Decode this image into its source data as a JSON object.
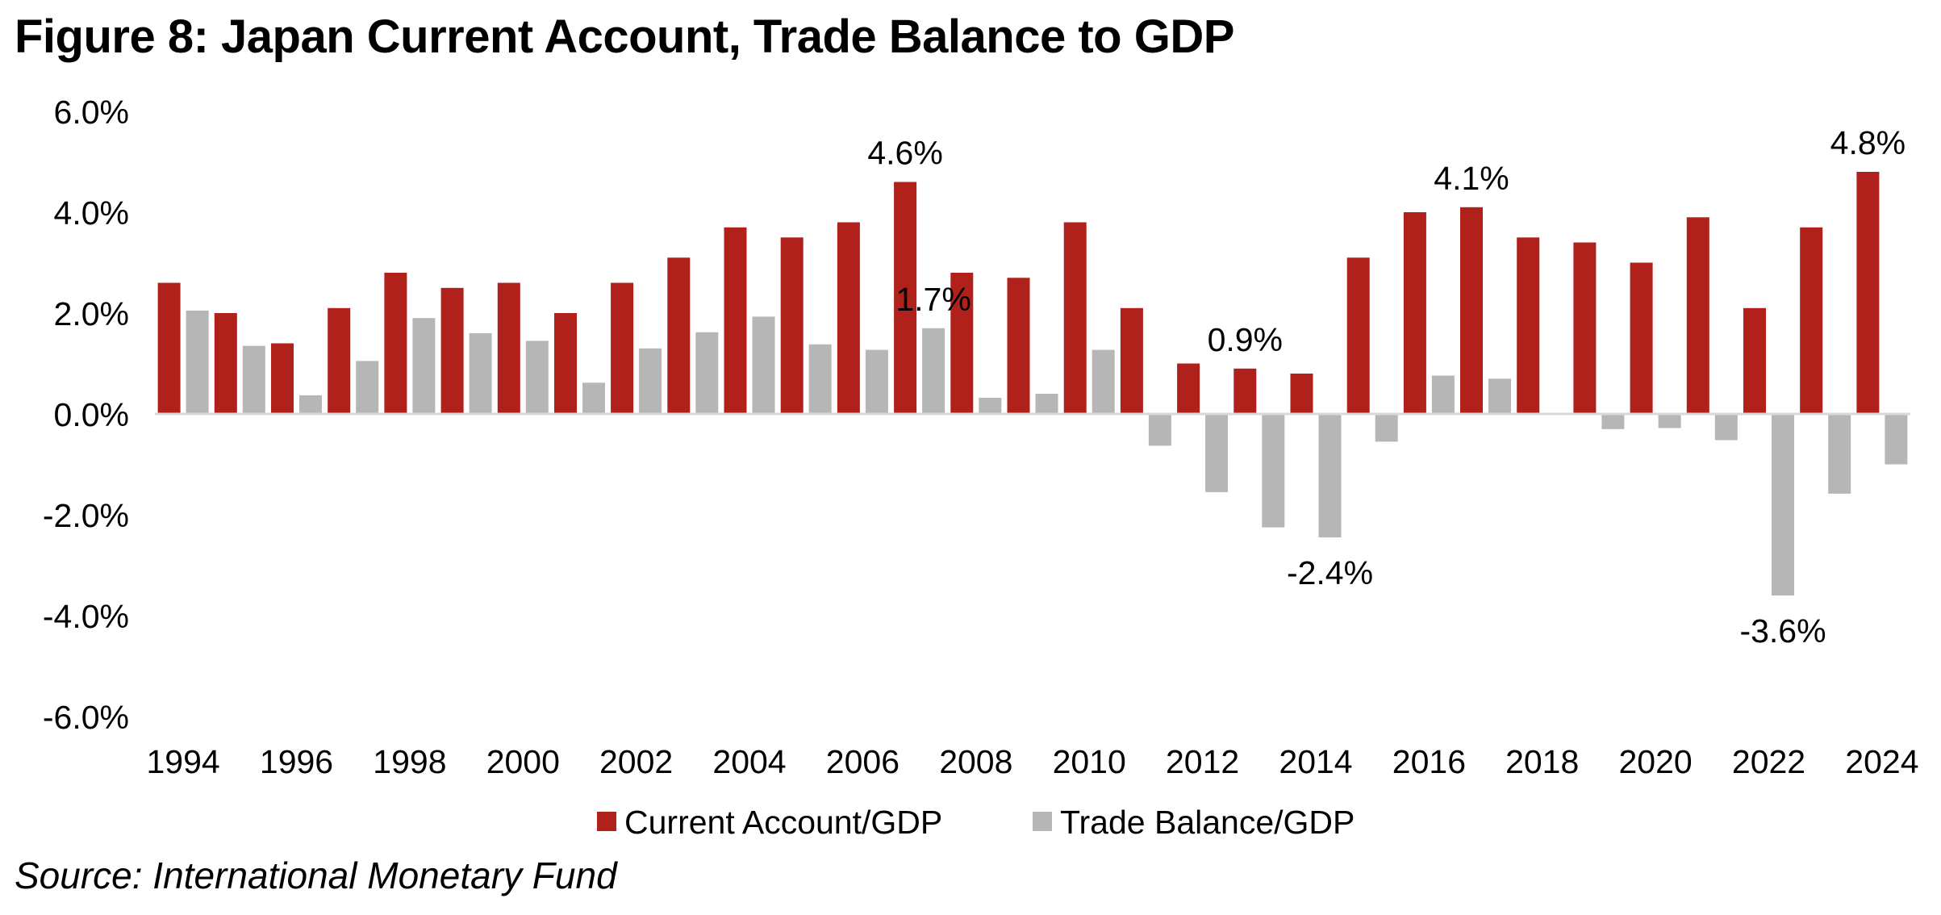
{
  "title": "Figure 8: Japan Current Account, Trade Balance to GDP",
  "source": "Source: International Monetary Fund",
  "chart_data": {
    "type": "bar",
    "categories": [
      "1994",
      "1995",
      "1996",
      "1997",
      "1998",
      "1999",
      "2000",
      "2001",
      "2002",
      "2003",
      "2004",
      "2005",
      "2006",
      "2007",
      "2008",
      "2009",
      "2010",
      "2011",
      "2012",
      "2013",
      "2014",
      "2015",
      "2016",
      "2017",
      "2018",
      "2019",
      "2020",
      "2021",
      "2022",
      "2023",
      "2024"
    ],
    "x_tick_labels": [
      "1994",
      "1996",
      "1998",
      "2000",
      "2002",
      "2004",
      "2006",
      "2008",
      "2010",
      "2012",
      "2014",
      "2016",
      "2018",
      "2020",
      "2022",
      "2024"
    ],
    "series": [
      {
        "name": "Current Account/GDP",
        "color": "#b1211c",
        "values": [
          2.6,
          2.0,
          1.4,
          2.1,
          2.8,
          2.5,
          2.6,
          2.0,
          2.6,
          3.1,
          3.7,
          3.5,
          3.8,
          4.6,
          2.8,
          2.7,
          3.8,
          2.1,
          1.0,
          0.9,
          0.8,
          3.1,
          4.0,
          4.1,
          3.5,
          3.4,
          3.0,
          3.9,
          2.1,
          3.7,
          4.8
        ]
      },
      {
        "name": "Trade Balance/GDP",
        "color": "#b6b6b6",
        "values": [
          2.05,
          1.35,
          0.37,
          1.05,
          1.9,
          1.6,
          1.45,
          0.62,
          1.3,
          1.62,
          1.93,
          1.38,
          1.27,
          1.7,
          0.32,
          0.4,
          1.27,
          -0.63,
          -1.55,
          -2.25,
          -2.45,
          -0.55,
          0.76,
          0.7,
          0.02,
          -0.3,
          -0.28,
          -0.52,
          -3.6,
          -1.58,
          -1.0
        ]
      }
    ],
    "annotations": [
      {
        "label": "4.6%",
        "category": "2007",
        "series": 0
      },
      {
        "label": "1.7%",
        "category": "2007",
        "series": 1
      },
      {
        "label": "0.9%",
        "category": "2013",
        "series": 0
      },
      {
        "label": "-2.4%",
        "category": "2014",
        "series": 1
      },
      {
        "label": "4.1%",
        "category": "2017",
        "series": 0
      },
      {
        "label": "-3.6%",
        "category": "2022",
        "series": 1
      },
      {
        "label": "4.8%",
        "category": "2024",
        "series": 0
      }
    ],
    "y_ticks": [
      6,
      4,
      2,
      0,
      -2,
      -4,
      -6
    ],
    "y_tick_labels": [
      "6.0%",
      "4.0%",
      "2.0%",
      "0.0%",
      "-2.0%",
      "-4.0%",
      "-6.0%"
    ],
    "ylim": [
      -6,
      6
    ],
    "xlabel": "",
    "ylabel": "",
    "legend_position": "bottom-center",
    "grid": false
  }
}
